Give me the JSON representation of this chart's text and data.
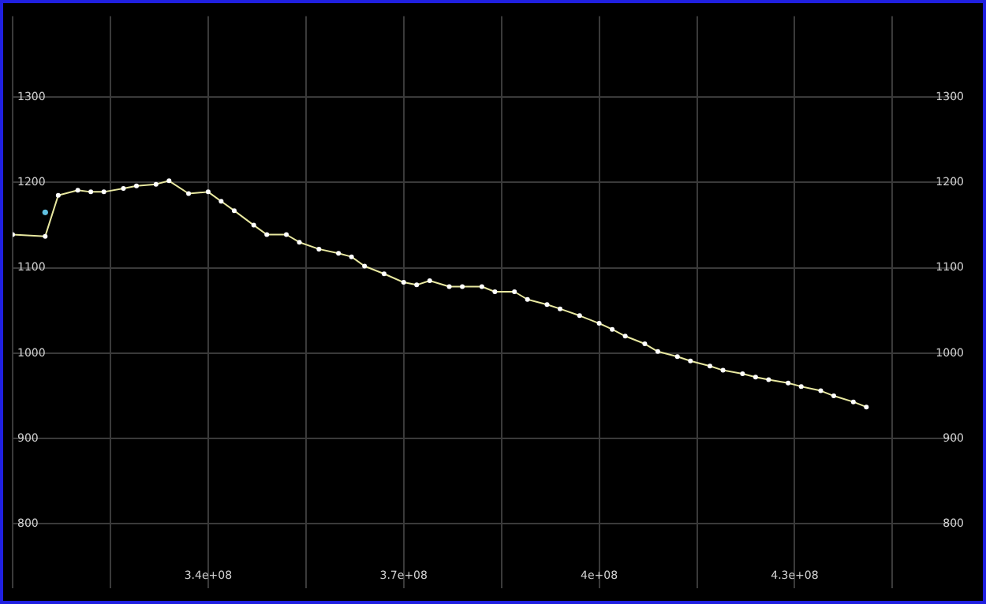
{
  "chart_data": {
    "type": "line",
    "xlim": [
      310000000,
      455000000
    ],
    "xticks": [
      {
        "value": 310000000,
        "label": null
      },
      {
        "value": 325000000,
        "label": null
      },
      {
        "value": 340000000,
        "label": "3.4e+08"
      },
      {
        "value": 355000000,
        "label": null
      },
      {
        "value": 370000000,
        "label": "3.7e+08"
      },
      {
        "value": 385000000,
        "label": null
      },
      {
        "value": 400000000,
        "label": "4e+08"
      },
      {
        "value": 415000000,
        "label": null
      },
      {
        "value": 430000000,
        "label": "4.3e+08"
      },
      {
        "value": 445000000,
        "label": null
      }
    ],
    "ylim": [
      725,
      1395
    ],
    "yticks": [
      800,
      900,
      1000,
      1100,
      1200,
      1300
    ],
    "y2lim": [
      725,
      1395
    ],
    "y2ticks": [
      800,
      900,
      1000,
      1100,
      1200,
      1300
    ],
    "grid": true,
    "marker": "circle",
    "line_style": "solid",
    "series": [
      {
        "type": "line",
        "color": "#e8e8a0",
        "x": [
          310000000,
          315000000,
          317000000,
          320000000,
          322000000,
          324000000,
          327000000,
          329000000,
          332000000,
          334000000,
          337000000,
          340000000,
          342000000,
          344000000,
          347000000,
          349000000,
          352000000,
          354000000,
          357000000,
          360000000,
          362000000,
          364000000,
          367000000,
          370000000,
          372000000,
          374000000,
          377000000,
          379000000,
          382000000,
          384000000,
          387000000,
          389000000,
          392000000,
          394000000,
          397000000,
          400000000,
          402000000,
          404000000,
          407000000,
          409000000,
          412000000,
          414000000,
          417000000,
          419000000,
          422000000,
          424000000,
          426000000,
          429000000,
          431000000,
          434000000,
          436000000,
          439000000,
          441000000
        ],
        "values": [
          1139,
          1137,
          1185,
          1191,
          1189,
          1189,
          1193,
          1196,
          1198,
          1202,
          1187,
          1189,
          1178,
          1167,
          1150,
          1139,
          1139,
          1130,
          1122,
          1117,
          1113,
          1102,
          1093,
          1083,
          1080,
          1085,
          1078,
          1078,
          1078,
          1072,
          1072,
          1063,
          1057,
          1052,
          1044,
          1035,
          1028,
          1020,
          1011,
          1002,
          996,
          991,
          985,
          980,
          976,
          972,
          969,
          965,
          961,
          956,
          950,
          943,
          937
        ]
      },
      {
        "type": "scatter",
        "color": "#60c0e0",
        "x": [
          315000000
        ],
        "values": [
          1165
        ]
      }
    ]
  }
}
